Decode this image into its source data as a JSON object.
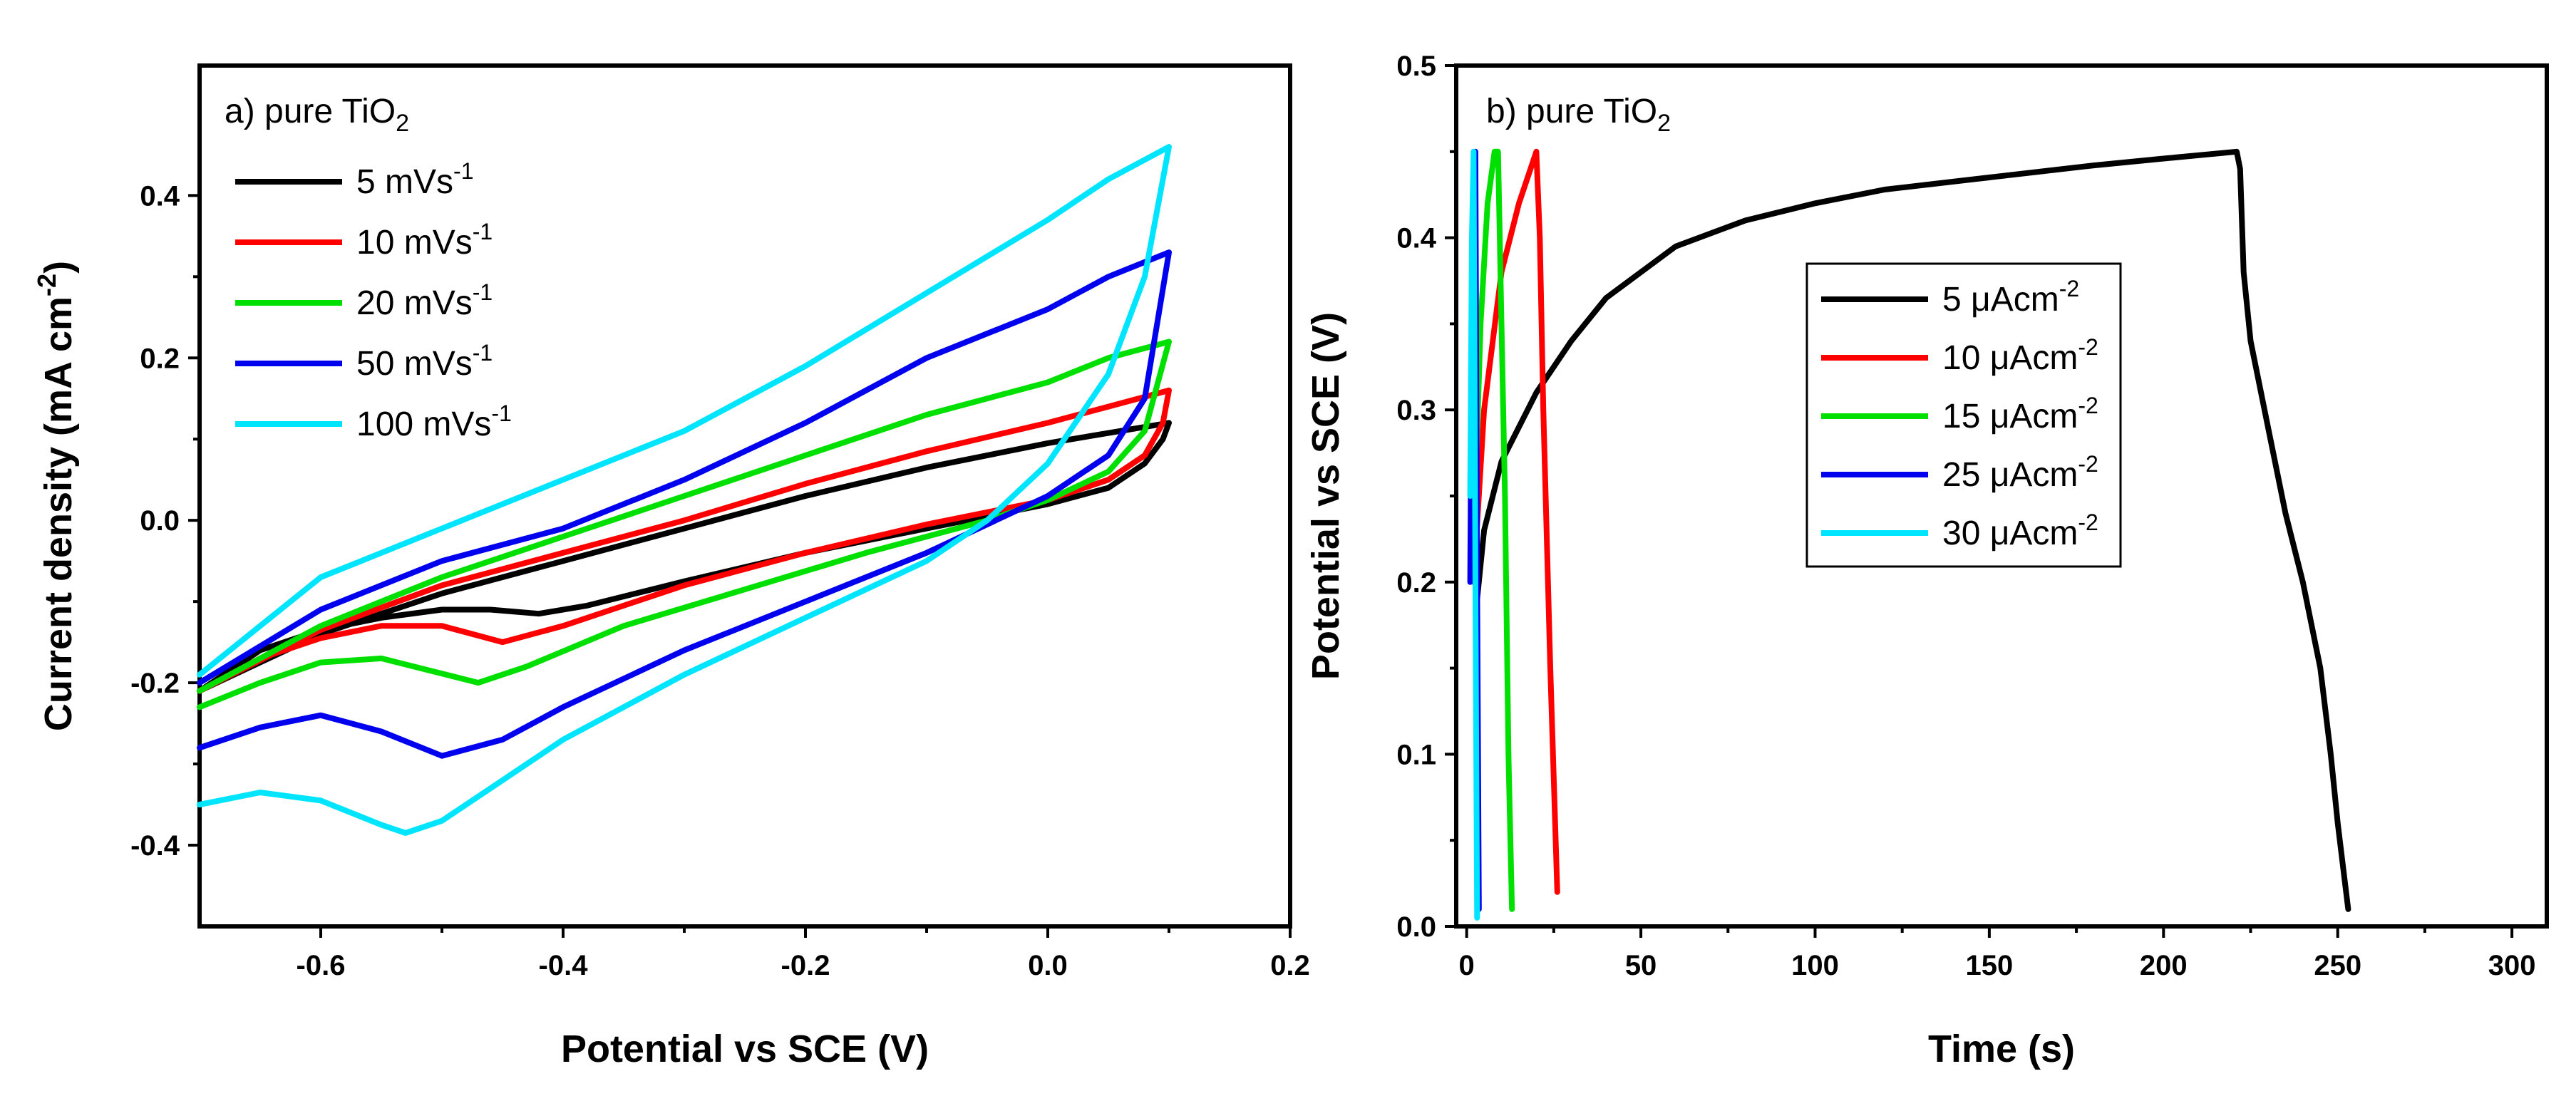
{
  "colors": {
    "black": "#000000",
    "red": "#ff0000",
    "green": "#00e000",
    "blue": "#0000ee",
    "cyan": "#00e5ff"
  },
  "chart_data": [
    {
      "type": "line",
      "panel_label": "a) pure TiO",
      "panel_label_sub": "2",
      "xlabel": "Potential vs SCE (V)",
      "ylabel": "Current density (mA cm",
      "ylabel_sup": "-2",
      "ylabel_close": ")",
      "xlim": [
        -0.7,
        0.2
      ],
      "ylim": [
        -0.5,
        0.56
      ],
      "xticks": [
        "-0.6",
        "-0.4",
        "-0.2",
        "0.0",
        "0.2"
      ],
      "xtick_values": [
        -0.6,
        -0.4,
        -0.2,
        0.0,
        0.2
      ],
      "yticks": [
        "-0.4",
        "-0.2",
        "0.0",
        "0.2",
        "0.4"
      ],
      "ytick_values": [
        -0.4,
        -0.2,
        0.0,
        0.2,
        0.4
      ],
      "legend_position": "top-left",
      "series": [
        {
          "name": "5 mVs",
          "name_sup": "-1",
          "color": "#000000",
          "x": [
            -0.7,
            -0.65,
            -0.6,
            -0.55,
            -0.5,
            -0.46,
            -0.42,
            -0.38,
            -0.3,
            -0.2,
            -0.1,
            0.0,
            0.05,
            0.08,
            0.095,
            0.1,
            0.06,
            0.0,
            -0.1,
            -0.2,
            -0.3,
            -0.4,
            -0.5,
            -0.6,
            -0.7
          ],
          "y": [
            -0.21,
            -0.16,
            -0.135,
            -0.12,
            -0.11,
            -0.11,
            -0.115,
            -0.105,
            -0.075,
            -0.04,
            -0.01,
            0.02,
            0.04,
            0.07,
            0.1,
            0.12,
            0.11,
            0.095,
            0.065,
            0.03,
            -0.01,
            -0.05,
            -0.09,
            -0.14,
            -0.21
          ]
        },
        {
          "name": "10 mVs",
          "name_sup": "-1",
          "color": "#ff0000",
          "x": [
            -0.7,
            -0.65,
            -0.6,
            -0.55,
            -0.5,
            -0.45,
            -0.4,
            -0.3,
            -0.2,
            -0.1,
            0.0,
            0.05,
            0.08,
            0.095,
            0.1,
            0.05,
            0.0,
            -0.1,
            -0.2,
            -0.3,
            -0.4,
            -0.5,
            -0.6,
            -0.7
          ],
          "y": [
            -0.21,
            -0.17,
            -0.145,
            -0.13,
            -0.13,
            -0.15,
            -0.13,
            -0.08,
            -0.04,
            -0.005,
            0.025,
            0.05,
            0.08,
            0.12,
            0.16,
            0.14,
            0.12,
            0.085,
            0.045,
            0.0,
            -0.04,
            -0.08,
            -0.135,
            -0.21
          ]
        },
        {
          "name": "20 mVs",
          "name_sup": "-1",
          "color": "#00e000",
          "x": [
            -0.7,
            -0.65,
            -0.6,
            -0.55,
            -0.51,
            -0.47,
            -0.43,
            -0.35,
            -0.25,
            -0.15,
            -0.05,
            0.0,
            0.05,
            0.08,
            0.1,
            0.05,
            0.0,
            -0.1,
            -0.2,
            -0.3,
            -0.4,
            -0.5,
            -0.6,
            -0.7
          ],
          "y": [
            -0.23,
            -0.2,
            -0.175,
            -0.17,
            -0.185,
            -0.2,
            -0.18,
            -0.13,
            -0.085,
            -0.04,
            0.0,
            0.025,
            0.06,
            0.11,
            0.22,
            0.2,
            0.17,
            0.13,
            0.08,
            0.03,
            -0.02,
            -0.07,
            -0.13,
            -0.21
          ]
        },
        {
          "name": "50 mVs",
          "name_sup": "-1",
          "color": "#0000ee",
          "x": [
            -0.7,
            -0.65,
            -0.6,
            -0.55,
            -0.5,
            -0.45,
            -0.4,
            -0.3,
            -0.2,
            -0.1,
            0.0,
            0.05,
            0.08,
            0.1,
            0.05,
            0.0,
            -0.1,
            -0.2,
            -0.3,
            -0.4,
            -0.5,
            -0.6,
            -0.7
          ],
          "y": [
            -0.28,
            -0.255,
            -0.24,
            -0.26,
            -0.29,
            -0.27,
            -0.23,
            -0.16,
            -0.1,
            -0.04,
            0.03,
            0.08,
            0.15,
            0.33,
            0.3,
            0.26,
            0.2,
            0.12,
            0.05,
            -0.01,
            -0.05,
            -0.11,
            -0.2
          ]
        },
        {
          "name": "100 mVs",
          "name_sup": "-1",
          "color": "#00e5ff",
          "x": [
            -0.7,
            -0.65,
            -0.6,
            -0.55,
            -0.53,
            -0.5,
            -0.45,
            -0.4,
            -0.3,
            -0.2,
            -0.1,
            -0.05,
            0.0,
            0.05,
            0.08,
            0.1,
            0.05,
            0.0,
            -0.1,
            -0.2,
            -0.3,
            -0.4,
            -0.5,
            -0.6,
            -0.7
          ],
          "y": [
            -0.35,
            -0.335,
            -0.345,
            -0.375,
            -0.385,
            -0.37,
            -0.32,
            -0.27,
            -0.19,
            -0.12,
            -0.05,
            0.0,
            0.07,
            0.18,
            0.3,
            0.46,
            0.42,
            0.37,
            0.28,
            0.19,
            0.11,
            0.05,
            -0.01,
            -0.07,
            -0.19
          ]
        }
      ]
    },
    {
      "type": "line",
      "panel_label": "b) pure TiO",
      "panel_label_sub": "2",
      "xlabel": "Time (s)",
      "ylabel": "Potential  vs SCE (V)",
      "xlim": [
        -3,
        310
      ],
      "ylim": [
        0.0,
        0.5
      ],
      "xticks": [
        "0",
        "50",
        "100",
        "150",
        "200",
        "250",
        "300"
      ],
      "xtick_values": [
        0,
        50,
        100,
        150,
        200,
        250,
        300
      ],
      "yticks": [
        "0.0",
        "0.1",
        "0.2",
        "0.3",
        "0.4",
        "0.5"
      ],
      "ytick_values": [
        0.0,
        0.1,
        0.2,
        0.3,
        0.4,
        0.5
      ],
      "legend_position": "center-right",
      "series": [
        {
          "name": " 5 μAcm",
          "name_sup": "-2",
          "color": "#000000",
          "x": [
            3,
            5,
            10,
            20,
            30,
            40,
            50,
            60,
            80,
            100,
            120,
            150,
            180,
            200,
            221,
            222,
            223,
            225,
            230,
            235,
            240,
            245,
            248,
            250,
            253
          ],
          "y": [
            0.19,
            0.23,
            0.27,
            0.31,
            0.34,
            0.365,
            0.38,
            0.395,
            0.41,
            0.42,
            0.428,
            0.435,
            0.442,
            0.446,
            0.45,
            0.44,
            0.38,
            0.34,
            0.29,
            0.24,
            0.2,
            0.15,
            0.1,
            0.06,
            0.01
          ]
        },
        {
          "name": "10 μAcm",
          "name_sup": "-2",
          "color": "#ff0000",
          "x": [
            2,
            5,
            10,
            15,
            20,
            21,
            22,
            24,
            26
          ],
          "y": [
            0.2,
            0.3,
            0.38,
            0.42,
            0.45,
            0.4,
            0.3,
            0.15,
            0.02
          ]
        },
        {
          "name": "15 μAcm",
          "name_sup": "-2",
          "color": "#00e000",
          "x": [
            2,
            4,
            6,
            8,
            9,
            10,
            11,
            12,
            13
          ],
          "y": [
            0.22,
            0.35,
            0.42,
            0.45,
            0.45,
            0.35,
            0.25,
            0.1,
            0.01
          ]
        },
        {
          "name": "25 μAcm",
          "name_sup": "-2",
          "color": "#0000ee",
          "x": [
            1.0,
            1.5,
            2.5,
            3.0,
            3.5
          ],
          "y": [
            0.2,
            0.35,
            0.45,
            0.2,
            0.01
          ]
        },
        {
          "name": "30 μAcm",
          "name_sup": "-2",
          "color": "#00e5ff",
          "x": [
            1.0,
            1.5,
            2.0,
            2.5,
            3.0
          ],
          "y": [
            0.25,
            0.4,
            0.45,
            0.2,
            0.005
          ]
        }
      ]
    }
  ]
}
